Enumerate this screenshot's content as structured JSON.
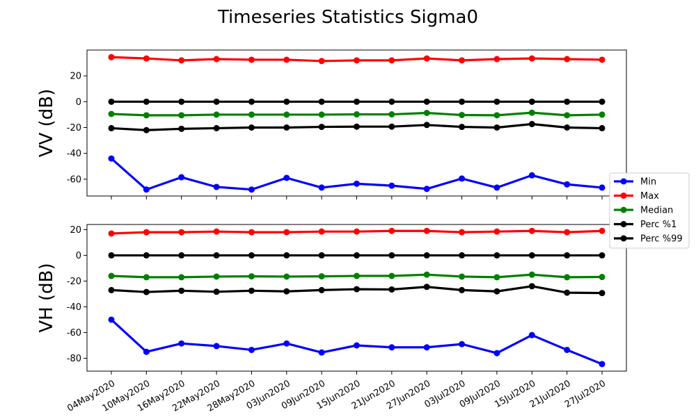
{
  "chart_data": {
    "type": "line",
    "title": "Timeseries Statistics Sigma0",
    "categories": [
      "04May2020",
      "10May2020",
      "16May2020",
      "22May2020",
      "28May2020",
      "03Jun2020",
      "09Jun2020",
      "15Jun2020",
      "21Jun2020",
      "27Jun2020",
      "03Jul2020",
      "09Jul2020",
      "15Jul2020",
      "21Jul2020",
      "27Jul2020"
    ],
    "legend": {
      "placement": "center-right",
      "entries": [
        "Min",
        "Max",
        "Median",
        "Perc %1",
        "Perc %99"
      ]
    },
    "colors": {
      "Min": "#0000ff",
      "Max": "#ff0000",
      "Median": "#008000",
      "Perc %1": "#000000",
      "Perc %99": "#000000"
    },
    "panels": [
      {
        "ylabel": "VV (dB)",
        "ylim": [
          -73,
          40
        ],
        "yticks": [
          20,
          0,
          -20,
          -40,
          -60
        ],
        "series": [
          {
            "name": "Min",
            "values": [
              -44,
              -68,
              -58.5,
              -66,
              -68,
              -59,
              -66.5,
              -63.5,
              -65,
              -67.5,
              -59.5,
              -66.5,
              -57,
              -64,
              -66.5
            ]
          },
          {
            "name": "Max",
            "values": [
              34.5,
              33.5,
              32,
              33,
              32.5,
              32.5,
              31.5,
              32,
              32,
              33.5,
              32,
              33,
              33.5,
              33,
              32.5
            ]
          },
          {
            "name": "Median",
            "values": [
              -9.5,
              -10.5,
              -10.5,
              -10,
              -10,
              -10,
              -10,
              -9.8,
              -9.8,
              -8.7,
              -10.3,
              -10.5,
              -8.5,
              -10.5,
              -10
            ]
          },
          {
            "name": "Perc %1",
            "values": [
              -20.5,
              -22,
              -21,
              -20.5,
              -20,
              -20,
              -19.5,
              -19.3,
              -19.3,
              -18,
              -19.5,
              -20,
              -17.3,
              -20,
              -20.5
            ]
          },
          {
            "name": "Perc %99",
            "values": [
              0,
              0,
              0,
              0,
              0,
              0,
              0,
              0,
              0,
              0,
              0,
              0,
              0,
              0,
              0
            ]
          }
        ]
      },
      {
        "ylabel": "VH (dB)",
        "ylim": [
          -90,
          24
        ],
        "yticks": [
          20,
          0,
          -20,
          -40,
          -60,
          -80
        ],
        "series": [
          {
            "name": "Min",
            "values": [
              -50,
              -75,
              -68.5,
              -70.5,
              -73.5,
              -68.5,
              -75.5,
              -70,
              -71.5,
              -71.5,
              -69,
              -76,
              -62,
              -73.5,
              -84.5
            ]
          },
          {
            "name": "Max",
            "values": [
              17,
              18,
              18,
              18.5,
              18,
              18,
              18.5,
              18.5,
              19,
              19,
              18,
              18.5,
              19,
              18,
              19
            ]
          },
          {
            "name": "Median",
            "values": [
              -16,
              -17,
              -17,
              -16.5,
              -16.3,
              -16.5,
              -16.3,
              -16,
              -16,
              -15,
              -16.5,
              -17,
              -15,
              -17,
              -16.8
            ]
          },
          {
            "name": "Perc %1",
            "values": [
              -27,
              -28.5,
              -27.5,
              -28.3,
              -27.5,
              -28,
              -27,
              -26.3,
              -26.5,
              -24.5,
              -27,
              -28,
              -24,
              -29,
              -29.3
            ]
          },
          {
            "name": "Perc %99",
            "values": [
              0,
              0,
              0,
              0,
              0,
              0,
              0,
              0,
              0,
              0,
              0,
              0,
              0,
              0,
              0
            ]
          }
        ]
      }
    ]
  }
}
